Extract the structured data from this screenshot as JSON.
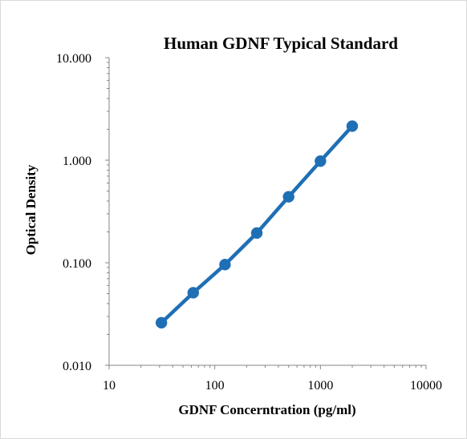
{
  "chart_data": {
    "type": "scatter",
    "title": "Human GDNF Typical Standard",
    "xlabel": "GDNF Concerntration (pg/ml)",
    "ylabel": "Optical Density",
    "x_scale": "log",
    "y_scale": "log",
    "xlim": [
      10,
      10000
    ],
    "ylim": [
      0.01,
      10
    ],
    "x_ticks": [
      "10",
      "100",
      "1000",
      "10000"
    ],
    "y_ticks": [
      "0.010",
      "0.100",
      "1.000",
      "10.000"
    ],
    "grid": false,
    "legend": "none",
    "series": [
      {
        "color": "#1f6fb5",
        "x": [
          31.25,
          62.5,
          125,
          250,
          500,
          1000,
          2000
        ],
        "y": [
          0.026,
          0.051,
          0.096,
          0.195,
          0.44,
          0.98,
          2.15
        ]
      }
    ]
  }
}
